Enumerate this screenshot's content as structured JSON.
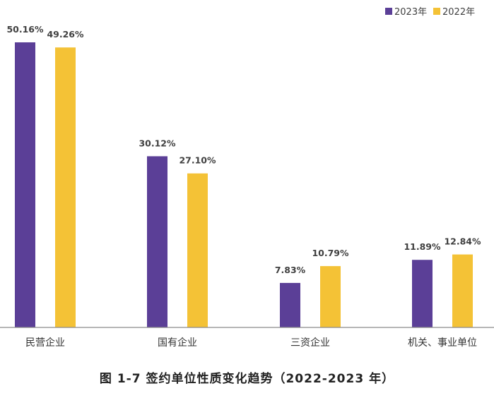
{
  "chart_data": {
    "type": "bar",
    "title": "",
    "categories": [
      "民营企业",
      "国有企业",
      "三资企业",
      "机关、事业单位"
    ],
    "series": [
      {
        "name": "2023年",
        "color": "#5b3f97",
        "values": [
          50.16,
          30.12,
          7.83,
          11.89
        ],
        "labels": [
          "50.16%",
          "30.12%",
          "7.83%",
          "11.89%"
        ]
      },
      {
        "name": "2022年",
        "color": "#f4c236",
        "values": [
          49.26,
          27.1,
          10.79,
          12.84
        ],
        "labels": [
          "49.26%",
          "27.10%",
          "10.79%",
          "12.84%"
        ]
      }
    ],
    "xlabel": "",
    "ylabel": "",
    "ylim": [
      0,
      50.16
    ],
    "grid": false,
    "legend": "top-right"
  },
  "caption": "图 1-7   签约单位性质变化趋势（2022-2023 年）"
}
